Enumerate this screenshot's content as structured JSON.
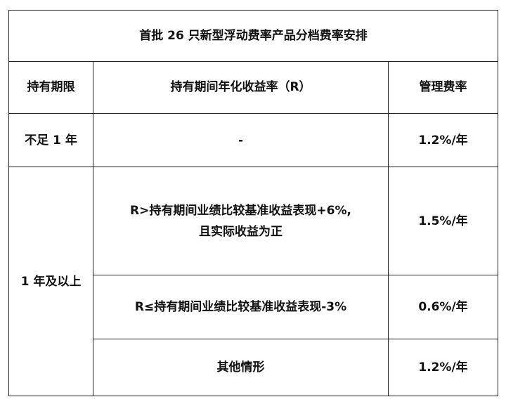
{
  "title": "首批 26 只新型浮动费率产品分档费率安排",
  "headers": [
    "持有期限",
    "持有期间年化收益率（R）",
    "管理费率"
  ],
  "rows": [
    {
      "period": "不足 1 年",
      "condition": "-",
      "fee": "1.2%/年"
    },
    {
      "period": "1 年及以上",
      "condition_line1": "R>持有期间业绩比较基准收益表现+6%,",
      "condition_line2": "且实际收益为正",
      "fee": "1.5%/年"
    },
    {
      "condition": "R≤持有期间业绩比较基准收益表现-3%",
      "fee": "0.6%/年"
    },
    {
      "condition": "其他情形",
      "fee": "1.2%/年"
    }
  ]
}
